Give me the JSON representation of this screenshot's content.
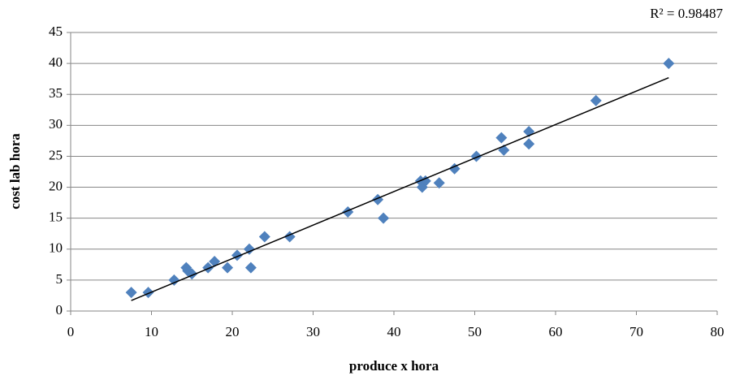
{
  "chart_data": {
    "type": "scatter",
    "x_label": "produce x hora",
    "y_label": "cost lab hora",
    "annotation": "R² = 0.98487",
    "series": [
      {
        "color": "#4f81bd",
        "x": [
          7.5,
          9.6,
          12.8,
          14.3,
          14.5,
          15,
          17,
          17.8,
          19.4,
          20.6,
          22.1,
          22.3,
          24,
          27.1,
          34.3,
          38,
          38.7,
          43.3,
          43.5,
          43.9,
          45.6,
          47.5,
          50.2,
          53.3,
          53.6,
          56.7,
          56.7,
          65,
          74
        ],
        "values": [
          3,
          3,
          5,
          7,
          6.5,
          6,
          7,
          8,
          7,
          9,
          10,
          7,
          12,
          12,
          16,
          18,
          15,
          21,
          20,
          21,
          20.7,
          23,
          25,
          28,
          26,
          29,
          27,
          34,
          40
        ]
      }
    ],
    "trendline": {
      "color": "#000000",
      "x": [
        7.5,
        74
      ],
      "values": [
        1.7,
        37.7
      ]
    },
    "xlim": [
      0,
      80
    ],
    "xticks": [
      0,
      10,
      20,
      30,
      40,
      50,
      60,
      70,
      80
    ],
    "ylim": [
      0,
      45
    ],
    "yticks": [
      0,
      5,
      10,
      15,
      20,
      25,
      30,
      35,
      40,
      45
    ],
    "grid": true
  }
}
